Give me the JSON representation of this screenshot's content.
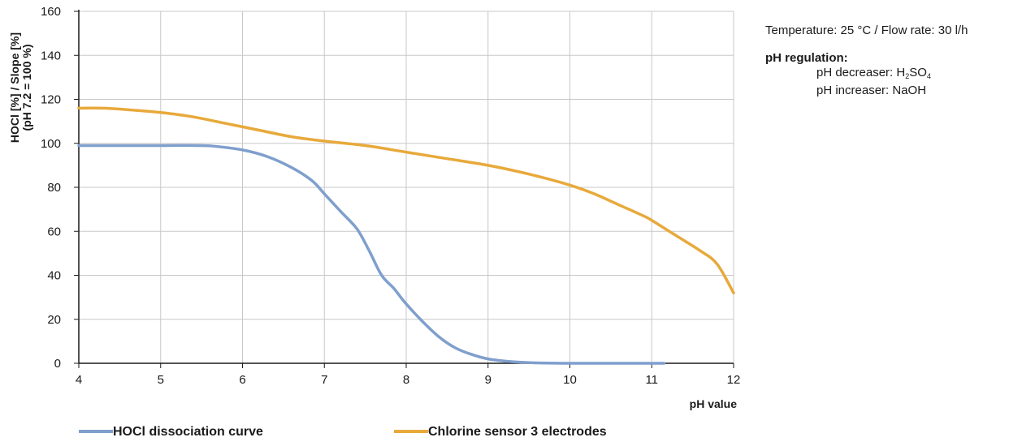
{
  "chart_data": {
    "type": "line",
    "xlabel": "pH value",
    "ylabel_line1": "HOCl [%]  / Slope [%]",
    "ylabel_line2": "(pH 7.2 = 100 %)",
    "xlim": [
      4,
      12
    ],
    "ylim": [
      0,
      160
    ],
    "x_ticks": [
      4,
      5,
      6,
      7,
      8,
      9,
      10,
      11,
      12
    ],
    "y_ticks": [
      0,
      20,
      40,
      60,
      80,
      100,
      120,
      140,
      160
    ],
    "grid": true,
    "legend_position": "bottom",
    "series": [
      {
        "name": "HOCl dissociation curve",
        "color": "#7f9fcd",
        "points": [
          [
            4,
            99
          ],
          [
            4.5,
            99
          ],
          [
            5,
            99
          ],
          [
            5.5,
            99
          ],
          [
            5.7,
            98.5
          ],
          [
            6,
            97
          ],
          [
            6.3,
            94
          ],
          [
            6.6,
            89
          ],
          [
            6.85,
            83
          ],
          [
            7,
            77
          ],
          [
            7.2,
            69
          ],
          [
            7.4,
            61
          ],
          [
            7.55,
            51
          ],
          [
            7.7,
            40
          ],
          [
            7.85,
            34
          ],
          [
            8,
            27
          ],
          [
            8.2,
            19
          ],
          [
            8.4,
            12
          ],
          [
            8.6,
            7
          ],
          [
            8.8,
            4
          ],
          [
            9,
            2
          ],
          [
            9.3,
            0.7
          ],
          [
            9.6,
            0.2
          ],
          [
            10,
            0
          ],
          [
            10.5,
            0
          ],
          [
            11.15,
            0
          ]
        ]
      },
      {
        "name": "Chlorine sensor 3 electrodes",
        "color": "#e8a93b",
        "points": [
          [
            4,
            116
          ],
          [
            4.3,
            116
          ],
          [
            4.7,
            115
          ],
          [
            5,
            114
          ],
          [
            5.4,
            112
          ],
          [
            5.8,
            109
          ],
          [
            6.2,
            106
          ],
          [
            6.6,
            103
          ],
          [
            7,
            101
          ],
          [
            7.5,
            99
          ],
          [
            8,
            96
          ],
          [
            8.5,
            93
          ],
          [
            9,
            90
          ],
          [
            9.5,
            86
          ],
          [
            10,
            81
          ],
          [
            10.3,
            77
          ],
          [
            10.6,
            72
          ],
          [
            10.9,
            67
          ],
          [
            11,
            65
          ],
          [
            11.3,
            58
          ],
          [
            11.6,
            51
          ],
          [
            11.8,
            45
          ],
          [
            12,
            32
          ]
        ]
      }
    ]
  },
  "info": {
    "temperature_line": "Temperature: 25 °C / Flow rate: 30 l/h",
    "regulation_title": "pH regulation:",
    "decreaser_label": "pH decreaser: H",
    "decreaser_sub1": "2",
    "decreaser_mid": "SO",
    "decreaser_sub2": "4",
    "increaser_label": "pH increaser: NaOH"
  }
}
